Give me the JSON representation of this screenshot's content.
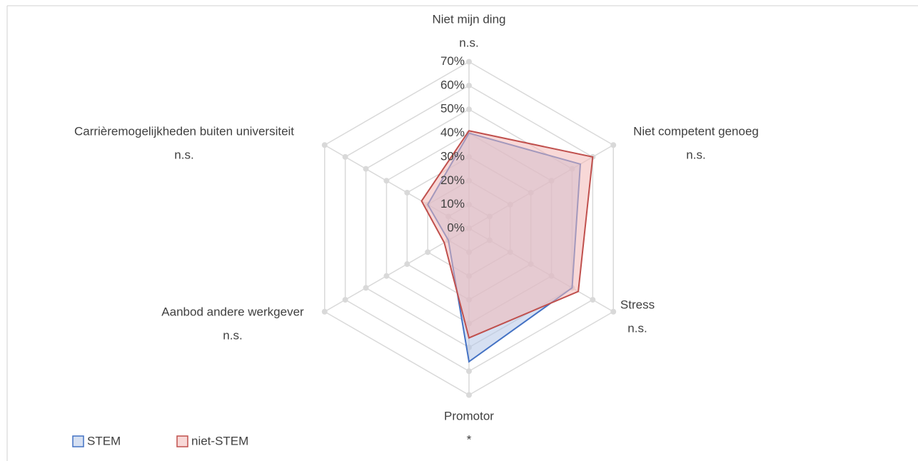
{
  "chart_data": {
    "type": "radar",
    "categories": [
      "Niet mijn ding",
      "Niet competent genoeg",
      "Stress",
      "Promotor",
      "Aanbod andere werkgever",
      "Carrièremogelijkheden buiten universiteit"
    ],
    "significance": [
      "n.s.",
      "n.s.",
      "n.s.",
      "*",
      "n.s.",
      "n.s."
    ],
    "series": [
      {
        "name": "STEM",
        "color": "#4472c4",
        "fill": "#b4c7e7",
        "values": [
          40,
          54,
          50,
          56,
          10,
          20
        ]
      },
      {
        "name": "niet-STEM",
        "color": "#c0504d",
        "fill": "#f2b8b7",
        "values": [
          41,
          60,
          53,
          46,
          12,
          23
        ]
      }
    ],
    "ylim": [
      0,
      70
    ],
    "yticks": [
      {
        "value": 0,
        "label": "0%"
      },
      {
        "value": 10,
        "label": "10%"
      },
      {
        "value": 20,
        "label": "20%"
      },
      {
        "value": 30,
        "label": "30%"
      },
      {
        "value": 40,
        "label": "40%"
      },
      {
        "value": 50,
        "label": "50%"
      },
      {
        "value": 60,
        "label": "60%"
      },
      {
        "value": 70,
        "label": "70%"
      }
    ],
    "grid": true,
    "legend": "bottom-left"
  }
}
